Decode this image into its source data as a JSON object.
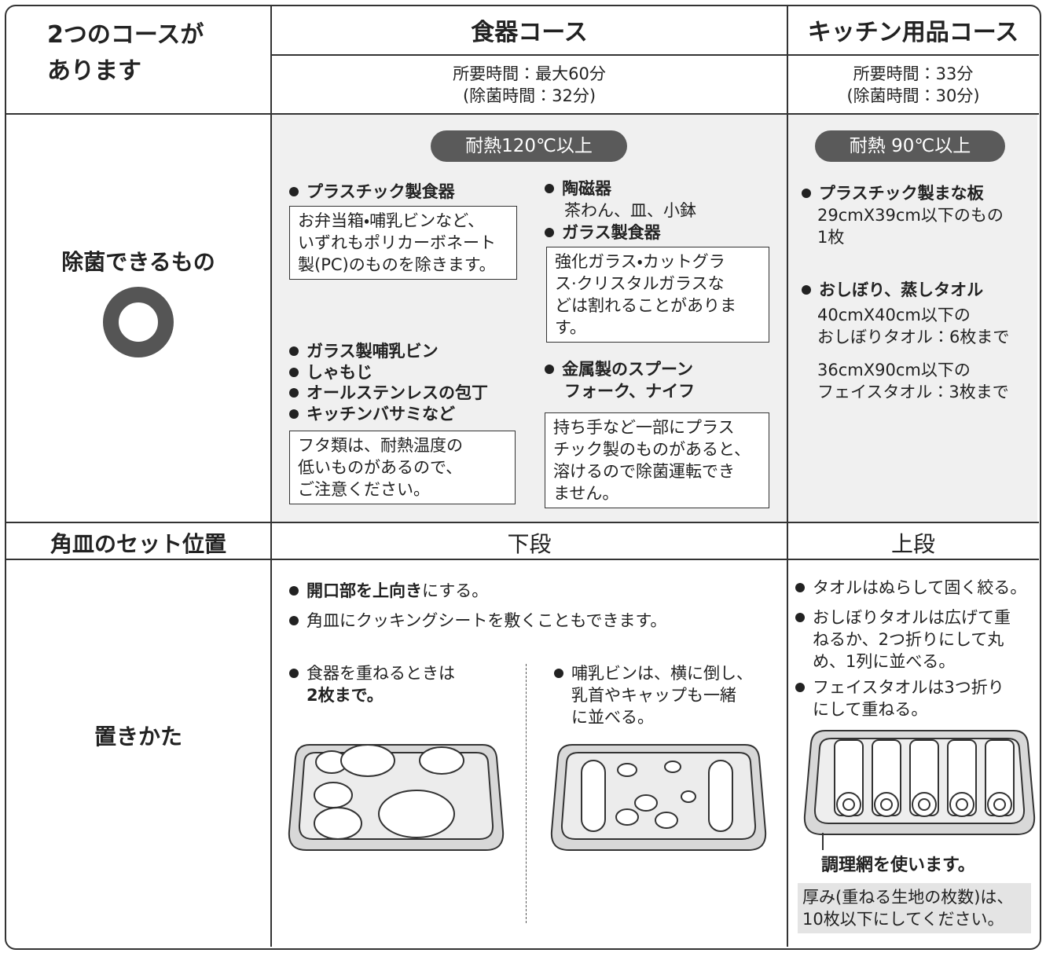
{
  "header": {
    "title_lines": [
      "2つのコースが",
      "あります"
    ]
  },
  "courses": [
    {
      "name": "食器コース",
      "time_lines": [
        "所要時間：最大60分",
        "(除菌時間：32分)"
      ]
    },
    {
      "name": "キッチン用品コース",
      "time_lines": [
        "所要時間：33分",
        "(除菌時間：30分)"
      ]
    }
  ],
  "sterilizable": {
    "label": "除菌できるもの",
    "dish": {
      "badge": "耐熱120℃以上",
      "plastic": {
        "item": "プラスチック製食器",
        "note_lines": [
          "お弁当箱・哺乳ビンなど、",
          "いずれもポリカーボネート",
          "製(PC)のものを除きます。"
        ]
      },
      "ceramic": {
        "item": "陶磁器",
        "detail": "茶わん、皿、小鉢"
      },
      "glass": {
        "item": "ガラス製食器",
        "note_lines": [
          "強化ガラス・カットグラ",
          "ス·クリスタルガラスな",
          "どは割れることがありま",
          "す。"
        ]
      },
      "misc": {
        "items": [
          "ガラス製哺乳ビン",
          "しゃもじ",
          "オールステンレスの包丁",
          "キッチンバサミなど"
        ],
        "note_lines": [
          "フタ類は、耐熱温度の",
          "低いものがあるので、",
          "ご注意ください。"
        ]
      },
      "metal": {
        "item_lines": [
          "金属製のスプーン",
          "フォーク、ナイフ"
        ],
        "note_lines": [
          "持ち手など一部にプラス",
          "チック製のものがあると、",
          "溶けるので除菌運転でき",
          "ません。"
        ]
      }
    },
    "kitchen": {
      "badge": "耐熱 90℃以上",
      "board": {
        "item": "プラスチック製まな板",
        "detail_lines": [
          "29cmX39cm以下のもの",
          "1枚"
        ]
      },
      "towel": {
        "item": "おしぼり、蒸しタオル",
        "detail_groups": [
          [
            "40cmX40cm以下の",
            "おしぼりタオル：6枚まで"
          ],
          [
            "36cmX90cm以下の",
            "フェイスタオル：3枚まで"
          ]
        ]
      }
    }
  },
  "tray_position": {
    "label": "角皿のセット位置",
    "dish": "下段",
    "kitchen": "上段"
  },
  "placement": {
    "label": "置きかた",
    "dish": {
      "opening": {
        "bold": "開口部を上向き",
        "rest": "にする。"
      },
      "sheet": "角皿にクッキングシートを敷くこともできます。",
      "stack": {
        "text": "食器を重ねるときは",
        "bold": "2枚まで。"
      },
      "bottle_lines": [
        "哺乳ビンは、横に倒し、",
        "乳首やキャップも一緒",
        "に並べる。"
      ]
    },
    "kitchen": {
      "bullets": [
        [
          "タオルはぬらして固く絞る。"
        ],
        [
          "おしぼりタオルは広げて重",
          "ねるか、2つ折りにして丸",
          "め、1列に並べる。"
        ],
        [
          "フェイスタオルは3つ折り",
          "にして重ねる。"
        ]
      ],
      "caption": "調理網を使います。",
      "note_lines": [
        "厚み(重ねる生地の枚数)は、",
        "10枚以下にしてください。"
      ]
    }
  }
}
